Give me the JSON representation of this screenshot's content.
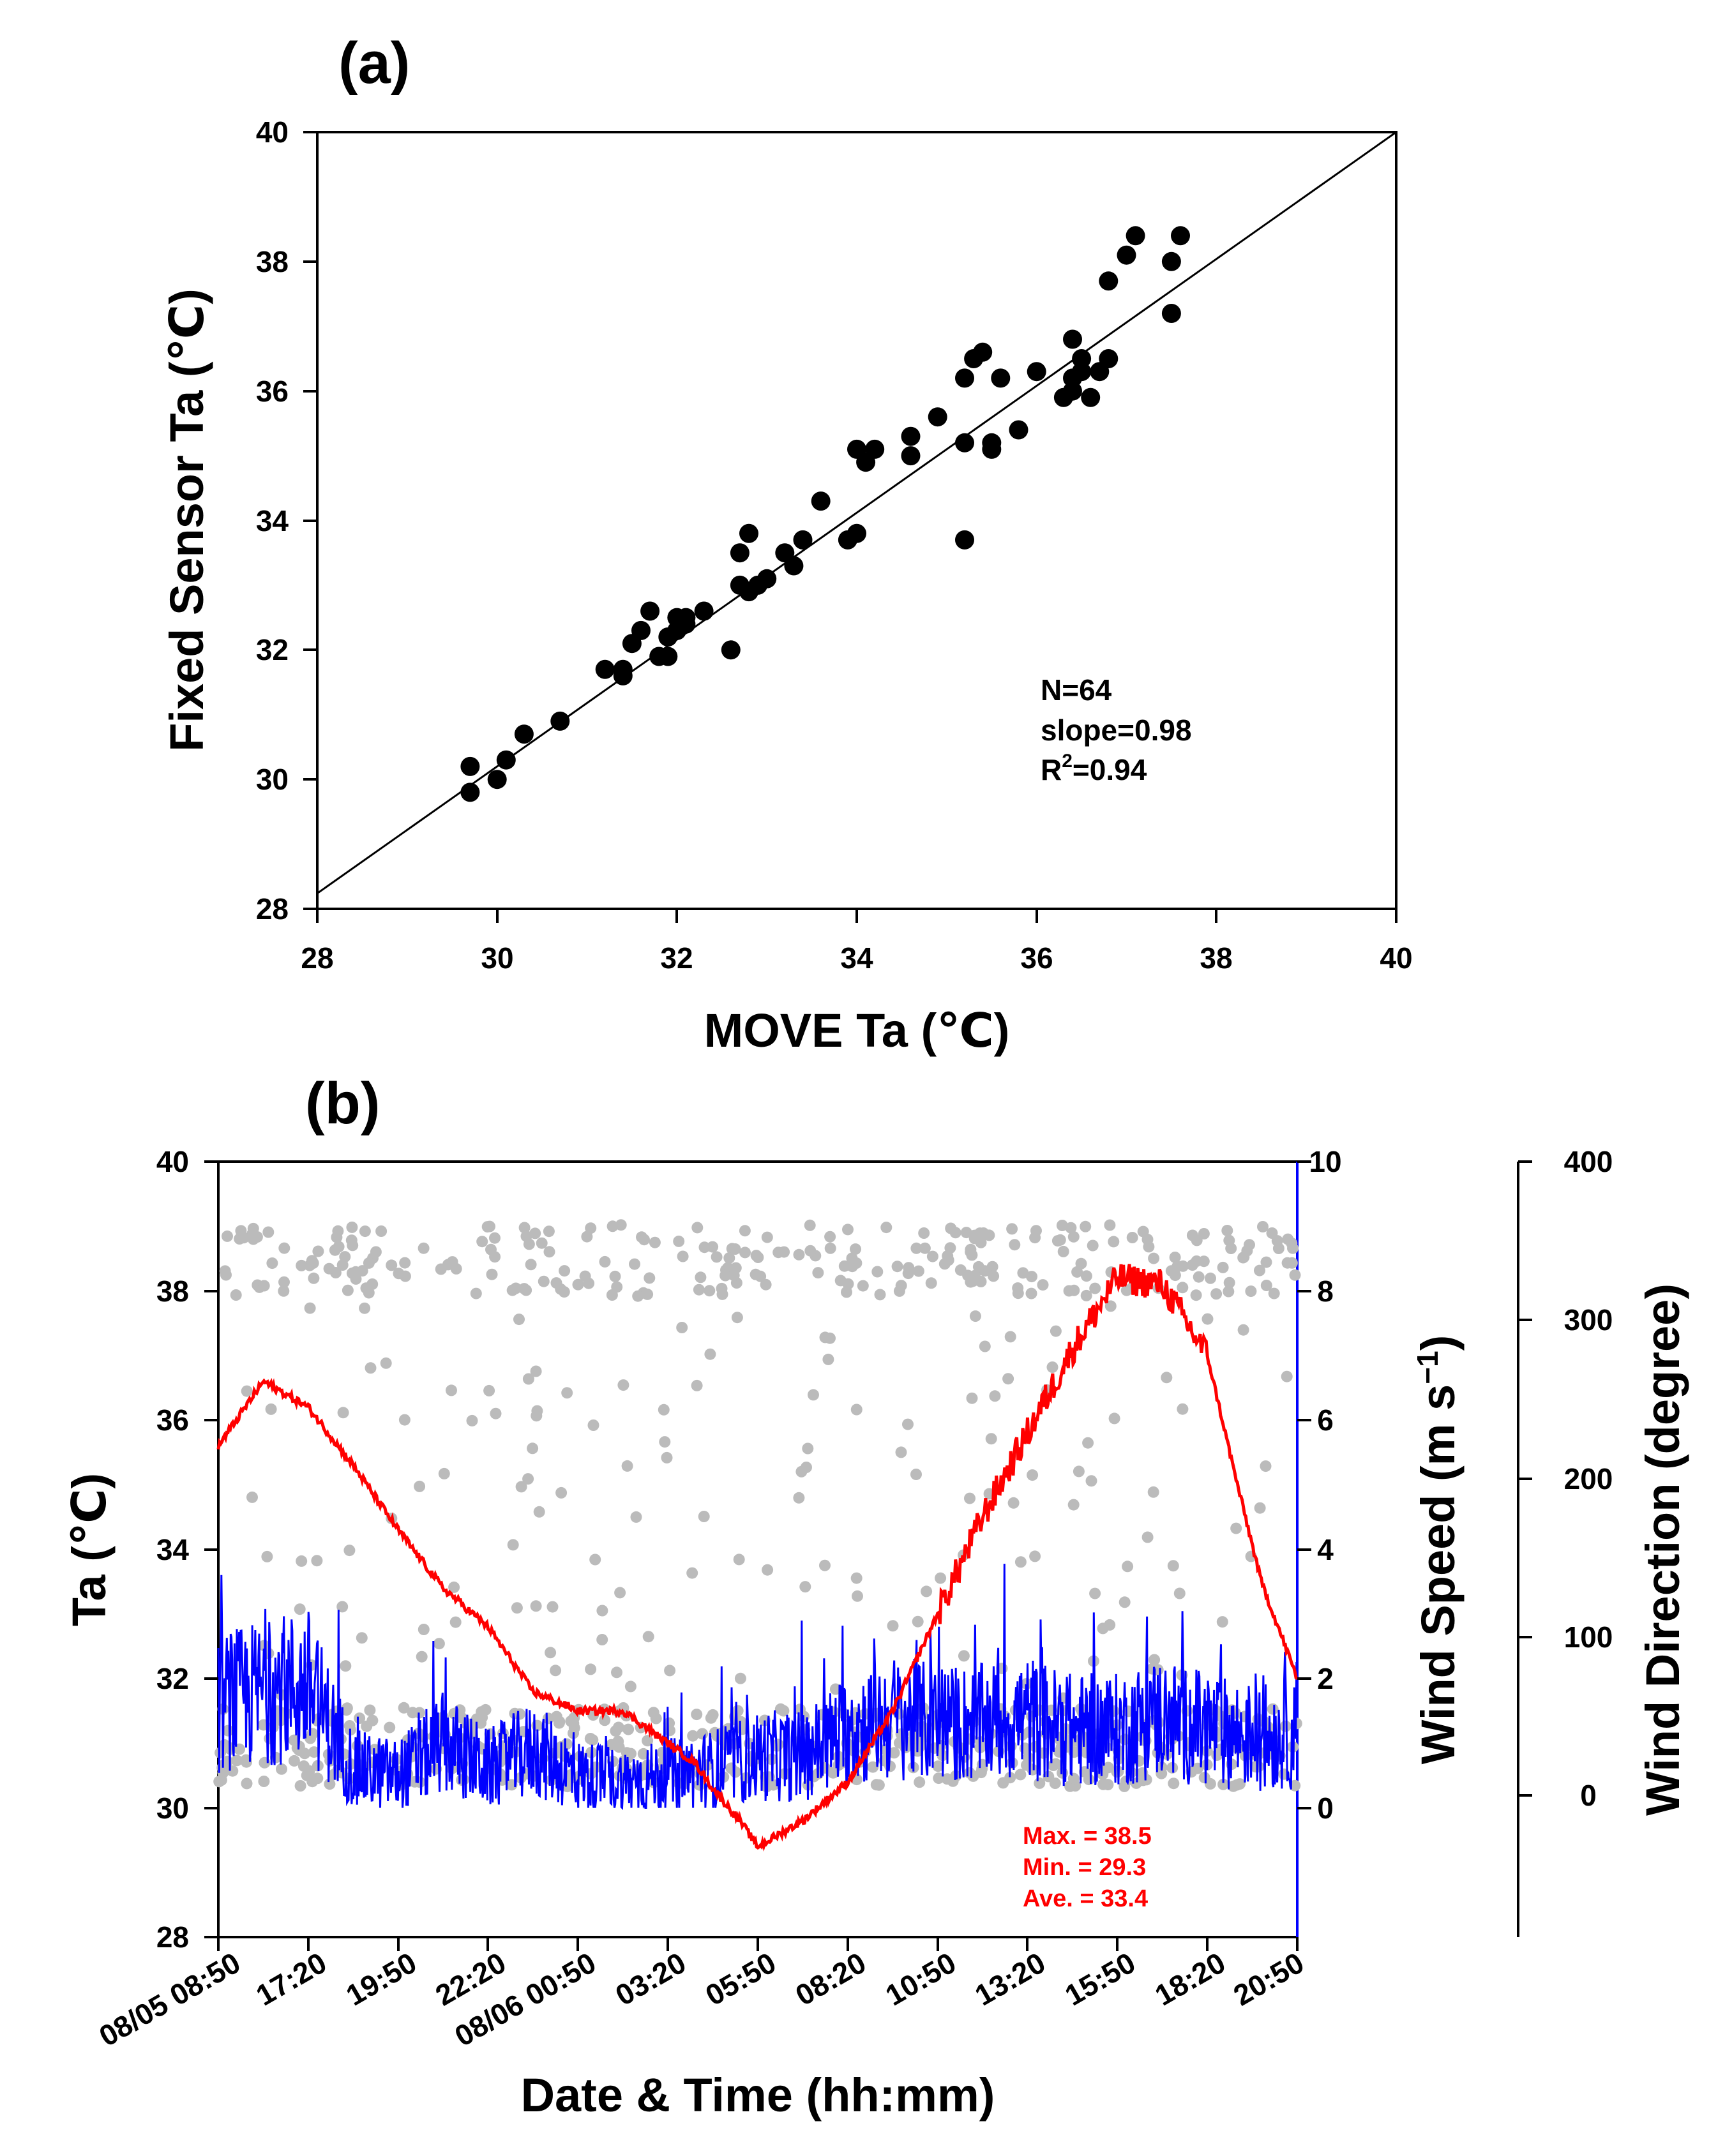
{
  "colors": {
    "axis": "#000000",
    "scatter": "#000000",
    "ta_line": "#ff0000",
    "wind_speed": "#0000ff",
    "wind_direction": "#bbbbbb",
    "stats_text": "#ff0000"
  },
  "chart_data": [
    {
      "panel_label": "(a)",
      "type": "scatter",
      "xlabel": "MOVE Ta (℃)",
      "ylabel": "Fixed Sensor Ta (℃)",
      "xlim": [
        28,
        40
      ],
      "ylim": [
        28,
        40
      ],
      "x_ticks": [
        "28",
        "30",
        "32",
        "34",
        "36",
        "38",
        "40"
      ],
      "y_ticks": [
        "28",
        "30",
        "32",
        "34",
        "36",
        "38",
        "40"
      ],
      "fit_line": {
        "slope": 0.98,
        "intercept": 0.8
      },
      "stats": {
        "n": "N=64",
        "slope": "slope=0.98",
        "r2_prefix": "R",
        "r2_sup": "2",
        "r2_value": "=0.94"
      },
      "points": [
        [
          29.7,
          30.2
        ],
        [
          29.7,
          29.8
        ],
        [
          30.0,
          30.0
        ],
        [
          30.1,
          30.3
        ],
        [
          30.3,
          30.7
        ],
        [
          30.7,
          30.9
        ],
        [
          31.2,
          31.7
        ],
        [
          31.4,
          31.6
        ],
        [
          31.4,
          31.7
        ],
        [
          31.5,
          32.1
        ],
        [
          31.6,
          32.3
        ],
        [
          31.7,
          32.6
        ],
        [
          31.8,
          31.9
        ],
        [
          31.9,
          31.9
        ],
        [
          31.9,
          32.2
        ],
        [
          32.0,
          32.3
        ],
        [
          32.0,
          32.5
        ],
        [
          32.1,
          32.4
        ],
        [
          32.1,
          32.5
        ],
        [
          32.3,
          32.6
        ],
        [
          32.6,
          32.0
        ],
        [
          32.7,
          33.0
        ],
        [
          32.7,
          33.5
        ],
        [
          32.8,
          33.8
        ],
        [
          32.8,
          32.9
        ],
        [
          32.9,
          33.0
        ],
        [
          33.0,
          33.1
        ],
        [
          33.2,
          33.5
        ],
        [
          33.3,
          33.3
        ],
        [
          33.4,
          33.7
        ],
        [
          33.6,
          34.3
        ],
        [
          33.9,
          33.7
        ],
        [
          34.0,
          33.8
        ],
        [
          34.0,
          35.1
        ],
        [
          34.1,
          34.9
        ],
        [
          34.2,
          35.1
        ],
        [
          34.6,
          35.3
        ],
        [
          34.6,
          35.0
        ],
        [
          34.9,
          35.6
        ],
        [
          35.2,
          36.2
        ],
        [
          35.2,
          35.2
        ],
        [
          35.3,
          36.5
        ],
        [
          35.4,
          36.6
        ],
        [
          35.5,
          35.1
        ],
        [
          35.5,
          35.2
        ],
        [
          35.6,
          36.2
        ],
        [
          35.8,
          35.4
        ],
        [
          36.0,
          36.3
        ],
        [
          35.2,
          33.7
        ],
        [
          36.3,
          35.9
        ],
        [
          36.4,
          36.0
        ],
        [
          36.4,
          36.8
        ],
        [
          36.4,
          36.2
        ],
        [
          36.5,
          36.5
        ],
        [
          36.5,
          36.3
        ],
        [
          36.6,
          35.9
        ],
        [
          36.7,
          36.3
        ],
        [
          36.8,
          36.5
        ],
        [
          36.8,
          37.7
        ],
        [
          37.0,
          38.1
        ],
        [
          37.1,
          38.4
        ],
        [
          37.5,
          38.0
        ],
        [
          37.5,
          37.2
        ],
        [
          37.6,
          38.4
        ]
      ]
    },
    {
      "panel_label": "(b)",
      "type": "line",
      "xlabel": "Date & Time (hh:mm)",
      "ylabel_left": "Ta (℃)",
      "ylabel_right": "Wind Speed (m s",
      "ylabel_right_sup": "−1",
      "ylabel_right_close": ")",
      "ylabel_far_right": "Wind Direction (degree)",
      "x_ticks": [
        "08/05 08:50",
        "17:20",
        "19:50",
        "22:20",
        "08/06 00:50",
        "03:20",
        "05:50",
        "08:20",
        "10:50",
        "13:20",
        "15:50",
        "18:20",
        "20:50"
      ],
      "ylim_left": [
        28,
        40
      ],
      "y_ticks_left": [
        "28",
        "30",
        "32",
        "34",
        "36",
        "38",
        "40"
      ],
      "ylim_right": [
        -2,
        10
      ],
      "y_ticks_right": [
        "0",
        "2",
        "4",
        "6",
        "8",
        "10"
      ],
      "ylim_far_right": [
        -90,
        400
      ],
      "y_ticks_far_right": [
        "0",
        "100",
        "200",
        "300",
        "400"
      ],
      "stats": {
        "max": "Max. = 38.5",
        "min": "Min. = 29.3",
        "ave": "Ave. = 33.4"
      },
      "series": [
        {
          "name": "Ta",
          "x": [
            0.0,
            0.5,
            1.0,
            1.5,
            2.0,
            2.5,
            3.0,
            3.5,
            4.0,
            4.5,
            5.0,
            5.3,
            5.5,
            5.8,
            6.0,
            6.5,
            7.0,
            7.5,
            8.0,
            8.5,
            9.0,
            9.5,
            10.0,
            10.5,
            11.0,
            11.3,
            11.6,
            12.0
          ],
          "values": [
            35.6,
            36.6,
            36.2,
            35.3,
            34.3,
            33.4,
            32.8,
            31.8,
            31.5,
            31.5,
            31.0,
            30.7,
            30.3,
            29.8,
            29.4,
            29.8,
            30.4,
            31.5,
            33.0,
            34.5,
            35.8,
            37.1,
            38.2,
            38.1,
            37.0,
            35.2,
            33.5,
            32.0
          ]
        },
        {
          "name": "Wind Speed",
          "x": [
            0.0,
            0.5,
            1.0,
            1.5,
            2.0,
            2.5,
            3.0,
            3.5,
            4.0,
            4.5,
            5.0,
            5.5,
            6.0,
            6.5,
            7.0,
            7.5,
            8.0,
            8.5,
            9.0,
            9.5,
            10.0,
            10.5,
            11.0,
            11.5,
            12.0
          ],
          "values": [
            1.6,
            1.8,
            1.9,
            0.6,
            0.5,
            1.0,
            0.6,
            0.9,
            0.5,
            0.4,
            0.5,
            0.6,
            0.8,
            0.8,
            1.2,
            1.4,
            1.3,
            1.3,
            1.4,
            1.2,
            1.2,
            1.4,
            1.2,
            1.1,
            1.1
          ]
        },
        {
          "name": "Wind Direction",
          "type": "scatter",
          "note": "dense grey scatter, clustered near 0-60 and 320-360 degrees"
        }
      ]
    }
  ]
}
